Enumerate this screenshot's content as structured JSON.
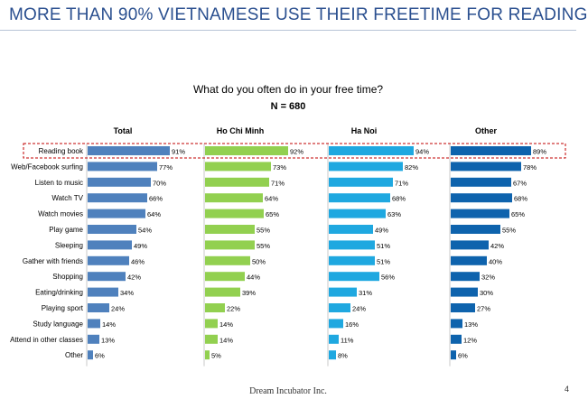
{
  "slide": {
    "title": "MORE THAN 90% VIETNAMESE USE THEIR FREETIME FOR READING",
    "footer": "Dream Incubator Inc.",
    "page_number": "4"
  },
  "chart_data": {
    "type": "bar",
    "orientation": "horizontal",
    "title": "What do you often do in your free time?",
    "subtitle": "N = 680",
    "categories": [
      "Reading book",
      "Web/Facebook surfing",
      "Listen to music",
      "Watch TV",
      "Watch movies",
      "Play game",
      "Sleeping",
      "Gather with friends",
      "Shopping",
      "Eating/drinking",
      "Playing sport",
      "Study language",
      "Attend in other classes",
      "Other"
    ],
    "series": [
      {
        "name": "Total",
        "color": "#4f81bd",
        "values": [
          91,
          77,
          70,
          66,
          64,
          54,
          49,
          46,
          42,
          34,
          24,
          14,
          13,
          6
        ]
      },
      {
        "name": "Ho Chi Minh",
        "color": "#92d050",
        "values": [
          92,
          73,
          71,
          64,
          65,
          55,
          55,
          50,
          44,
          39,
          22,
          14,
          14,
          5
        ]
      },
      {
        "name": "Ha Noi",
        "color": "#1fa8e0",
        "values": [
          94,
          82,
          71,
          68,
          63,
          49,
          51,
          51,
          56,
          31,
          24,
          16,
          11,
          8
        ]
      },
      {
        "name": "Other",
        "color": "#0e63ad",
        "values": [
          89,
          78,
          67,
          68,
          65,
          55,
          42,
          40,
          32,
          30,
          27,
          13,
          12,
          6
        ]
      }
    ],
    "value_suffix": "%",
    "xlim": [
      0,
      100
    ],
    "highlight_category": "Reading book",
    "highlight_color": "#c00000"
  }
}
